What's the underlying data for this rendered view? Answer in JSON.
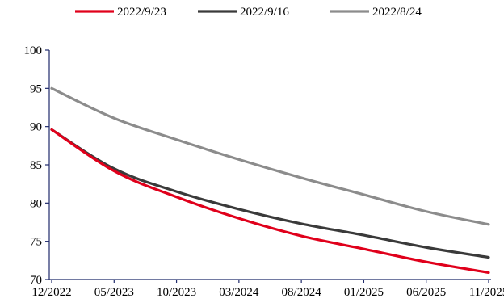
{
  "chart_data": {
    "type": "line",
    "title": "",
    "xlabel": "",
    "ylabel": "",
    "x": [
      "12/2022",
      "05/2023",
      "10/2023",
      "03/2024",
      "08/2024",
      "01/2025",
      "06/2025",
      "11/2025"
    ],
    "x_tick_labels": [
      "12/2022",
      "05/2023",
      "10/2023",
      "03/2024",
      "08/2024",
      "01/2025",
      "06/2025",
      "11/2025"
    ],
    "ylim": [
      70,
      100
    ],
    "y_ticks": [
      70,
      75,
      80,
      85,
      90,
      95,
      100
    ],
    "grid": false,
    "legend_position": "top-center",
    "series": [
      {
        "name": "2022/9/23",
        "color": "#e0001b",
        "values": [
          89.6,
          84.2,
          80.8,
          78.0,
          75.7,
          74.0,
          72.3,
          70.9
        ]
      },
      {
        "name": "2022/9/16",
        "color": "#3a3a3a",
        "values": [
          89.6,
          84.5,
          81.5,
          79.2,
          77.3,
          75.8,
          74.2,
          72.9
        ]
      },
      {
        "name": "2022/8/24",
        "color": "#8c8c8c",
        "values": [
          95.0,
          91.1,
          88.3,
          85.7,
          83.3,
          81.1,
          78.9,
          77.2
        ]
      }
    ]
  }
}
